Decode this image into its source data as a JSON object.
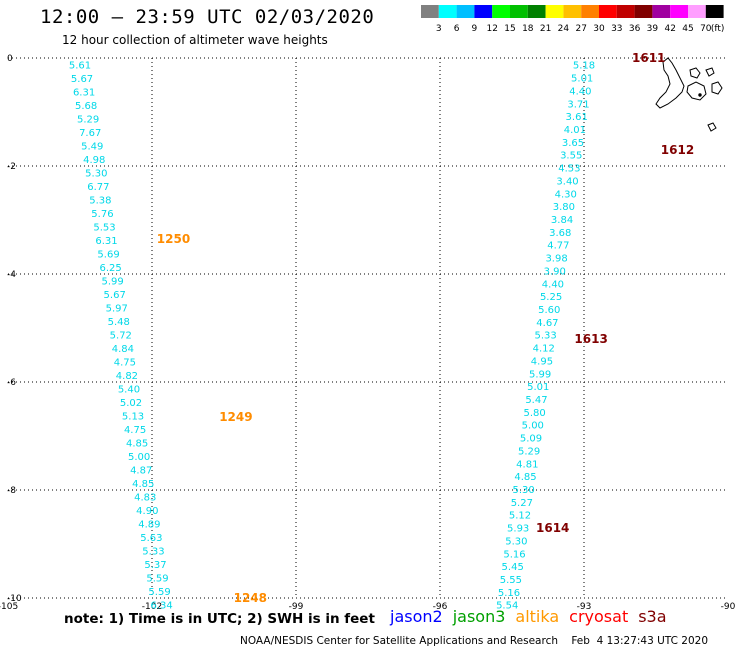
{
  "header": {
    "title": "12:00 – 23:59 UTC 02/03/2020",
    "subtitle": "12 hour collection of altimeter wave heights"
  },
  "legend": {
    "colors": [
      "#808080",
      "#00ffff",
      "#00bfff",
      "#0000ff",
      "#00ff00",
      "#00c000",
      "#008000",
      "#ffff00",
      "#ffc000",
      "#ff8000",
      "#ff0000",
      "#c00000",
      "#800000",
      "#a000a0",
      "#ff00ff",
      "#ff9eff",
      "#000000"
    ],
    "labels": [
      "3",
      "6",
      "9",
      "12",
      "15",
      "18",
      "21",
      "24",
      "27",
      "30",
      "33",
      "36",
      "39",
      "42",
      "45",
      "70",
      "(ft)"
    ]
  },
  "map": {
    "lon_min": -105,
    "lon_max": -90,
    "lat_min": -10,
    "lat_max": 0,
    "x_ticks": [
      "-105",
      "-102",
      "-99",
      "-96",
      "-93",
      "-90"
    ],
    "y_ticks": [
      "0",
      "-2",
      "-4",
      "-6",
      "-8",
      "-10"
    ],
    "grid_lons": [
      -102,
      -99,
      -96,
      -93
    ],
    "grid_lats": [
      0,
      -2,
      -4,
      -6,
      -8,
      -10
    ],
    "track_color": "#00d8e8",
    "west_track": {
      "lon_top": -103.5,
      "lon_bottom": -101.8,
      "values": [
        "5.61",
        "5.67",
        "6.31",
        "5.68",
        "5.29",
        "7.67",
        "5.49",
        "4.98",
        "5.30",
        "6.77",
        "5.38",
        "5.76",
        "5.53",
        "6.31",
        "5.69",
        "6.25",
        "5.99",
        "5.67",
        "5.97",
        "5.48",
        "5.72",
        "4.84",
        "4.75",
        "4.82",
        "5.40",
        "5.02",
        "5.13",
        "4.75",
        "4.85",
        "5.00",
        "4.87",
        "4.85",
        "4.83",
        "4.90",
        "4.89",
        "5.63",
        "5.33",
        "5.37",
        "5.59",
        "5.59",
        "6.34"
      ]
    },
    "east_track": {
      "lon_top": -93.0,
      "lon_bottom": -94.6,
      "values": [
        "5.18",
        "5.01",
        "4.40",
        "3.71",
        "3.61",
        "4.01",
        "3.65",
        "3.55",
        "4.53",
        "3.40",
        "4.30",
        "3.80",
        "3.84",
        "3.68",
        "4.77",
        "3.98",
        "3.90",
        "4.40",
        "5.25",
        "5.60",
        "4.67",
        "5.33",
        "4.12",
        "4.95",
        "5.99",
        "5.01",
        "5.47",
        "5.80",
        "5.00",
        "5.09",
        "5.29",
        "4.81",
        "4.85",
        "5.30",
        "5.27",
        "5.12",
        "5.93",
        "5.30",
        "5.16",
        "5.45",
        "5.55",
        "5.16",
        "5.54"
      ]
    },
    "time_labels": [
      {
        "text": "1250",
        "color": "#ff8c00",
        "lon": -101.9,
        "lat": -3.35
      },
      {
        "text": "1249",
        "color": "#ff8c00",
        "lon": -100.6,
        "lat": -6.65
      },
      {
        "text": "1248",
        "color": "#ff8c00",
        "lon": -100.3,
        "lat": -10.0
      },
      {
        "text": "1611",
        "color": "#800000",
        "lon": -92.0,
        "lat": 0.0
      },
      {
        "text": "1612",
        "color": "#800000",
        "lon": -91.4,
        "lat": -1.7
      },
      {
        "text": "1613",
        "color": "#800000",
        "lon": -93.2,
        "lat": -5.2
      },
      {
        "text": "1614",
        "color": "#800000",
        "lon": -94.0,
        "lat": -8.7
      }
    ]
  },
  "note": "note:  1) Time is in UTC;  2) SWH is in feet",
  "satellites": [
    {
      "name": "jason2",
      "color": "#0000ff"
    },
    {
      "name": "jason3",
      "color": "#00a000"
    },
    {
      "name": "altika",
      "color": "#ff9900"
    },
    {
      "name": "cryosat",
      "color": "#ff0000"
    },
    {
      "name": "s3a",
      "color": "#800000"
    }
  ],
  "footer": "NOAA/NESDIS Center for Satellite Applications and Research    Feb  4 13:27:43 UTC 2020"
}
